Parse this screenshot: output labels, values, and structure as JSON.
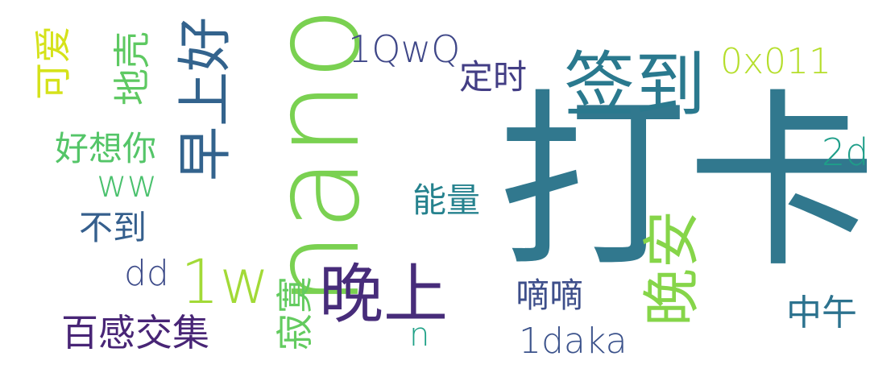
{
  "words": {
    "daka": "打卡",
    "nano": "nano",
    "qiandao": "签到",
    "zaoshanghao": "早上好",
    "wanshang": "晚上",
    "wanan": "晚安",
    "w1": "1w",
    "qwq": "1QwQ",
    "hex": "0x011",
    "d2": "2d",
    "ww": "ww",
    "dd": "dd",
    "n": "n",
    "daka1": "1daka",
    "dingshi": "定时",
    "haoxiangni": "好想你",
    "nengliang": "能量",
    "budao": "不到",
    "baiganjiaoji": "百感交集",
    "didi": "嘀嘀",
    "zhongwu": "中午",
    "keai": "可爱",
    "dike": "地壳",
    "jimo": "寂寞"
  },
  "colors": {
    "daka": "#31788e",
    "nano": "#7ad151",
    "qiandao": "#2a798e",
    "zaoshanghao": "#33638d",
    "wanshang": "#472c7a",
    "wanan": "#86d549",
    "w1": "#a2da37",
    "qwq": "#3f4788",
    "hex": "#b5de2b",
    "d2": "#1f9e89",
    "ww": "#4ac16d",
    "dd": "#3e4c8a",
    "n": "#1fa187",
    "daka1": "#3b528b",
    "dingshi": "#433e85",
    "haoxiangni": "#54c568",
    "nengliang": "#26828e",
    "budao": "#355f8d",
    "baiganjiaoji": "#482576",
    "didi": "#3d4e8a",
    "zhongwu": "#2c728e",
    "keai": "#d5e21a",
    "dike": "#5ec962",
    "jimo": "#63cb5f"
  }
}
